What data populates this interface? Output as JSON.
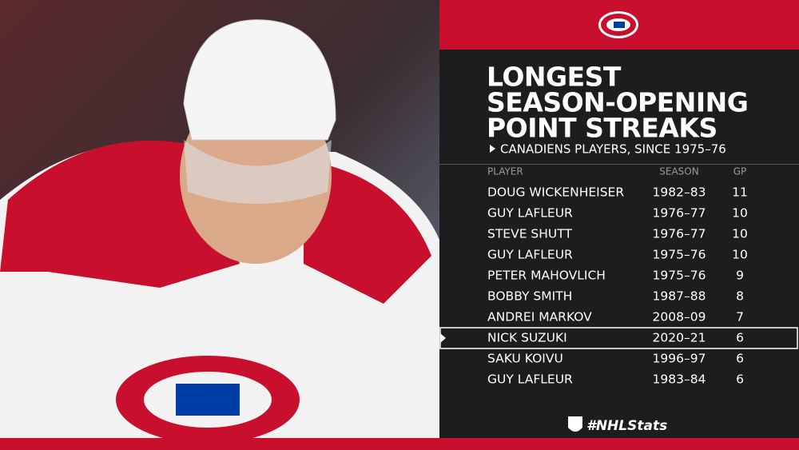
{
  "header": {
    "title": [
      "LONGEST",
      "SEASON-OPENING",
      "POINT STREAKS"
    ],
    "subtitle": "CANADIENS PLAYERS, SINCE 1975–76"
  },
  "table": {
    "columns": [
      "PLAYER",
      "SEASON",
      "GP"
    ],
    "rows": [
      [
        "DOUG WICKENHEISER",
        "1982–83",
        11
      ],
      [
        "GUY LAFLEUR",
        "1976–77",
        10
      ],
      [
        "STEVE SHUTT",
        "1976–77",
        10
      ],
      [
        "GUY LAFLEUR",
        "1975–76",
        10
      ],
      [
        "PETER MAHOVLICH",
        "1975–76",
        9
      ],
      [
        "BOBBY SMITH",
        "1987–88",
        8
      ],
      [
        "ANDREI MARKOV",
        "2008–09",
        7
      ],
      [
        "NICK SUZUKI",
        "2020–21",
        6
      ],
      [
        "SAKU KOIVU",
        "1996–97",
        6
      ],
      [
        "GUY LAFLEUR",
        "1983–84",
        6
      ]
    ]
  },
  "footer": {
    "hashtag": "#NHLStats"
  }
}
